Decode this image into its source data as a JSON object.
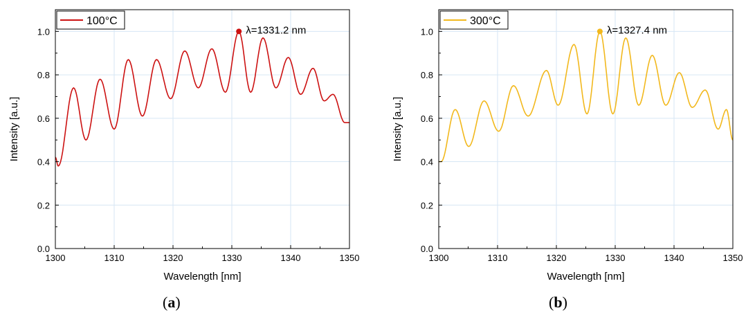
{
  "chart_data": [
    {
      "type": "line",
      "panel_label": "a",
      "xlabel": "Wavelength [nm]",
      "ylabel": "Intensity [a.u.]",
      "xlim": [
        1300,
        1350
      ],
      "ylim": [
        0.0,
        1.1
      ],
      "xticks": [
        1300,
        1310,
        1320,
        1330,
        1340,
        1350
      ],
      "yticks": [
        0.0,
        0.2,
        0.4,
        0.6,
        0.8,
        1.0
      ],
      "grid": true,
      "legend_position": "top-left",
      "series": [
        {
          "name": "100°C",
          "color": "#cc1111",
          "extrema": [
            [
              1300,
              0.42
            ],
            [
              1300.5,
              0.38
            ],
            [
              1303.1,
              0.74
            ],
            [
              1305.2,
              0.5
            ],
            [
              1307.6,
              0.78
            ],
            [
              1310.0,
              0.55
            ],
            [
              1312.4,
              0.87
            ],
            [
              1314.8,
              0.61
            ],
            [
              1317.2,
              0.87
            ],
            [
              1319.6,
              0.69
            ],
            [
              1322.0,
              0.91
            ],
            [
              1324.3,
              0.74
            ],
            [
              1326.6,
              0.92
            ],
            [
              1328.9,
              0.72
            ],
            [
              1331.2,
              1.0
            ],
            [
              1333.2,
              0.72
            ],
            [
              1335.3,
              0.97
            ],
            [
              1337.5,
              0.74
            ],
            [
              1339.6,
              0.88
            ],
            [
              1341.7,
              0.71
            ],
            [
              1343.8,
              0.83
            ],
            [
              1345.7,
              0.68
            ],
            [
              1347.2,
              0.71
            ],
            [
              1349.2,
              0.58
            ],
            [
              1350,
              0.58
            ]
          ]
        }
      ],
      "peak": {
        "x": 1331.2,
        "y": 1.0,
        "label": "λ=1331.2 nm"
      }
    },
    {
      "type": "line",
      "panel_label": "b",
      "xlabel": "Wavelength [nm]",
      "ylabel": "Intensity [a.u.]",
      "xlim": [
        1300,
        1350
      ],
      "ylim": [
        0.0,
        1.1
      ],
      "xticks": [
        1300,
        1310,
        1320,
        1330,
        1340,
        1350
      ],
      "yticks": [
        0.0,
        0.2,
        0.4,
        0.6,
        0.8,
        1.0
      ],
      "grid": true,
      "legend_position": "top-left",
      "series": [
        {
          "name": "300°C",
          "color": "#f2b81c",
          "extrema": [
            [
              1300,
              0.4
            ],
            [
              1300.4,
              0.4
            ],
            [
              1302.8,
              0.64
            ],
            [
              1305.1,
              0.47
            ],
            [
              1307.7,
              0.68
            ],
            [
              1310.2,
              0.54
            ],
            [
              1312.7,
              0.75
            ],
            [
              1315.2,
              0.61
            ],
            [
              1318.3,
              0.82
            ],
            [
              1320.3,
              0.66
            ],
            [
              1323.0,
              0.94
            ],
            [
              1325.2,
              0.62
            ],
            [
              1327.4,
              1.0
            ],
            [
              1329.6,
              0.62
            ],
            [
              1331.8,
              0.97
            ],
            [
              1334.0,
              0.66
            ],
            [
              1336.3,
              0.89
            ],
            [
              1338.6,
              0.66
            ],
            [
              1340.9,
              0.81
            ],
            [
              1343.1,
              0.65
            ],
            [
              1345.3,
              0.73
            ],
            [
              1347.5,
              0.55
            ],
            [
              1348.9,
              0.64
            ],
            [
              1350,
              0.5
            ]
          ]
        }
      ],
      "peak": {
        "x": 1327.4,
        "y": 1.0,
        "label": "λ=1327.4 nm"
      }
    }
  ]
}
